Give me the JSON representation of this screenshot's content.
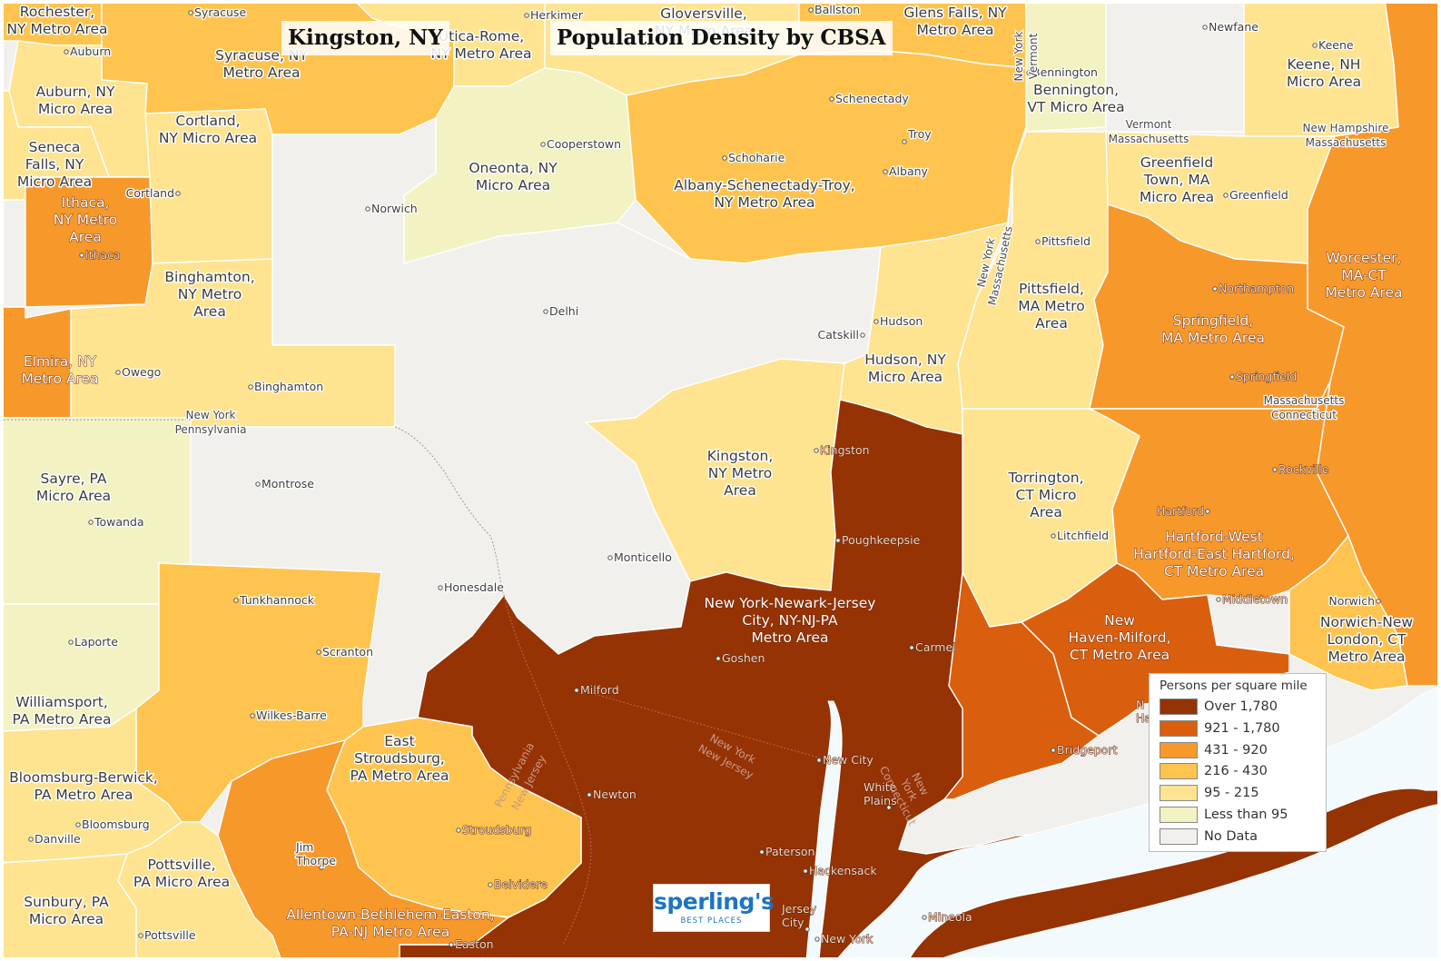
{
  "title": {
    "location": "Kingston, NY",
    "subtitle": "Population Density by CBSA"
  },
  "legend": {
    "title": "Persons per square mile",
    "classes": [
      {
        "label": "Over 1,780",
        "color": "#953305"
      },
      {
        "label": "921 - 1,780",
        "color": "#d95f0e"
      },
      {
        "label": "431 - 920",
        "color": "#f7982b"
      },
      {
        "label": "216 - 430",
        "color": "#fec44f"
      },
      {
        "label": "95 - 215",
        "color": "#fee391"
      },
      {
        "label": "Less than 95",
        "color": "#f3f2c2"
      },
      {
        "label": "No Data",
        "color": "#f1f0ec"
      }
    ]
  },
  "logo": {
    "name": "sperling's",
    "tagline": "BEST PLACES"
  },
  "cbsa_labels": {
    "rochester": [
      "Rochester,",
      "NY Metro Area"
    ],
    "syracuse": [
      "Syracuse, NY",
      "Metro Area"
    ],
    "utica": [
      "Utica-Rome,",
      "NY Metro Area"
    ],
    "gloversville": [
      "Gloversville,",
      "NY Micro Area"
    ],
    "glens_falls": [
      "Glens Falls, NY",
      "Metro Area"
    ],
    "bennington": [
      "Bennington,",
      "VT Micro Area"
    ],
    "keene": [
      "Keene, NH",
      "Micro Area"
    ],
    "auburn": [
      "Auburn, NY",
      "Micro Area"
    ],
    "seneca_falls": [
      "Seneca",
      "Falls, NY",
      "Micro Area"
    ],
    "cortland": [
      "Cortland,",
      "NY Micro Area"
    ],
    "ithaca": [
      "Ithaca,",
      "NY Metro",
      "Area"
    ],
    "oneonta": [
      "Oneonta, NY",
      "Micro Area"
    ],
    "albany": [
      "Albany-Schenectady-Troy,",
      "NY Metro Area"
    ],
    "greenfield": [
      "Greenfield",
      "Town, MA",
      "Micro Area"
    ],
    "binghamton": [
      "Binghamton,",
      "NY Metro",
      "Area"
    ],
    "pittsfield": [
      "Pittsfield,",
      "MA Metro",
      "Area"
    ],
    "worcester": [
      "Worcester,",
      "MA-CT",
      "Metro Area"
    ],
    "springfield": [
      "Springfield,",
      "MA Metro Area"
    ],
    "elmira": [
      "Elmira, NY",
      "Metro Area"
    ],
    "hudson": [
      "Hudson, NY",
      "Micro Area"
    ],
    "kingston": [
      "Kingston,",
      "NY Metro",
      "Area"
    ],
    "sayre": [
      "Sayre, PA",
      "Micro Area"
    ],
    "torrington": [
      "Torrington,",
      "CT Micro",
      "Area"
    ],
    "hartford": [
      "Hartford-West",
      "Hartford-East Hartford,",
      "CT Metro Area"
    ],
    "new_york": [
      "New York-Newark-Jersey",
      "City, NY-NJ-PA",
      "Metro Area"
    ],
    "new_haven": [
      "New",
      "Haven-Milford,",
      "CT Metro Area"
    ],
    "norwich": [
      "Norwich-New",
      "London, CT",
      "Metro Area"
    ],
    "williamsport": [
      "Williamsport,",
      "PA Metro Area"
    ],
    "east_stroudsburg": [
      "East",
      "Stroudsburg,",
      "PA Metro Area"
    ],
    "bloomsburg": [
      "Bloomsburg-Berwick,",
      "PA Metro Area"
    ],
    "pottsville": [
      "Pottsville,",
      "PA Micro Area"
    ],
    "sunbury": [
      "Sunbury, PA",
      "Micro Area"
    ],
    "allentown": [
      "Allentown-Bethlehem-Easton,",
      "PA-NJ Metro Area"
    ]
  },
  "cities": {
    "syracuse": "Syracuse",
    "herkimer": "Herkimer",
    "ballston": "Ballston",
    "newfane": "Newfane",
    "keene": "Keene",
    "auburn": "Auburn",
    "bennington": "Bennington",
    "schenectady": "Schenectady",
    "cooperstown": "Cooperstown",
    "schoharie": "Schoharie",
    "troy": "Troy",
    "albany": "Albany",
    "cortland": "Cortland",
    "norwich_ny": "Norwich",
    "ithaca": "Ithaca",
    "greenfield": "Greenfield",
    "pittsfield": "Pittsfield",
    "northampton": "Northampton",
    "delhi": "Delhi",
    "hudson": "Hudson",
    "catskill": "Catskill",
    "springfield": "Springfield",
    "owego": "Owego",
    "binghamton": "Binghamton",
    "kingston": "Kingston",
    "rockville": "Rockville",
    "montrose": "Montrose",
    "towanda": "Towanda",
    "hartford": "Hartford",
    "litchfield": "Litchfield",
    "poughkeepsie": "Poughkeepsie",
    "monticello": "Monticello",
    "honesdale": "Honesdale",
    "middletown": "Middletown",
    "norwich_ct": "Norwich",
    "tunkhannock": "Tunkhannock",
    "laporte": "Laporte",
    "scranton": "Scranton",
    "carmel": "Carmel",
    "goshen": "Goshen",
    "milford": "Milford",
    "wilkes_barre": "Wilkes-Barre",
    "new_city": "New City",
    "white_plains": [
      "White",
      "Plains"
    ],
    "bridgeport": "Bridgeport",
    "newton": "Newton",
    "bloomsburg": "Bloomsburg",
    "danville": "Danville",
    "stroudsburg": "Stroudsburg",
    "jim_thorpe": [
      "Jim",
      "Thorpe"
    ],
    "paterson": "Paterson",
    "hackensack": "Hackensack",
    "belvidere": "Belvidere",
    "jersey_city": [
      "Jersey",
      "City"
    ],
    "mineola": "Mineola",
    "new_york": "New York",
    "pottsville": "Pottsville",
    "easton": "Easton",
    "new_haven": [
      "N",
      "Ha"
    ]
  },
  "state_labels": {
    "ny_vt": [
      "New York",
      "Vermont"
    ],
    "vt_ma": [
      "Vermont",
      "Massachusetts"
    ],
    "nh_ma": [
      "New Hampshire",
      "Massachusetts"
    ],
    "ny_ma": [
      "New York",
      "Massachusetts"
    ],
    "ma_ct": [
      "Massachusetts",
      "Connecticut"
    ],
    "ny_pa": [
      "New York",
      "Pennsylvania"
    ],
    "pa_nj": [
      "Pennsylvania",
      "New Jersey"
    ],
    "ny_nj": [
      "New York",
      "New Jersey"
    ],
    "ny_ct": [
      "New",
      "York",
      "Connecticut"
    ]
  }
}
